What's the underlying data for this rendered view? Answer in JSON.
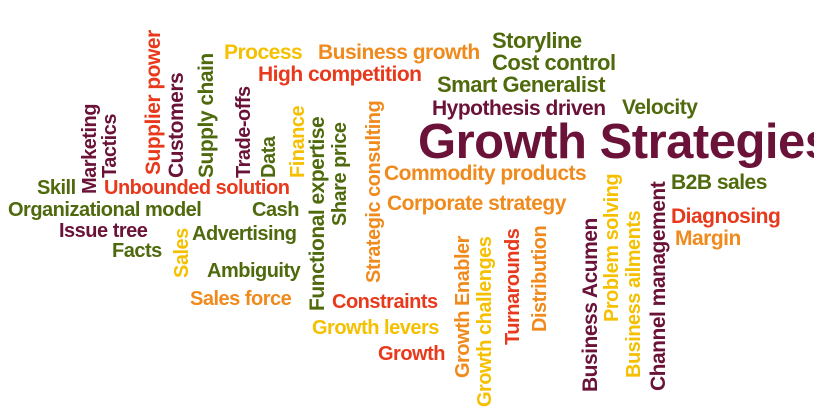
{
  "palette": {
    "maroon": "#6b1238",
    "olive": "#4f6a0c",
    "orange": "#f08a1c",
    "red": "#e8391c",
    "yellow": "#f5c000"
  },
  "words": [
    {
      "text": "Growth Strategies",
      "color": "#6b1238"
    },
    {
      "text": "Storyline",
      "color": "#4f6a0c"
    },
    {
      "text": "Cost control",
      "color": "#4f6a0c"
    },
    {
      "text": "Smart Generalist",
      "color": "#4f6a0c"
    },
    {
      "text": "Process",
      "color": "#f5c000"
    },
    {
      "text": "Business growth",
      "color": "#f08a1c"
    },
    {
      "text": "High competition",
      "color": "#e8391c"
    },
    {
      "text": "Hypothesis driven",
      "color": "#6b1238"
    },
    {
      "text": "Velocity",
      "color": "#4f6a0c"
    },
    {
      "text": "Commodity products",
      "color": "#f08a1c"
    },
    {
      "text": "B2B sales",
      "color": "#4f6a0c"
    },
    {
      "text": "Corporate strategy",
      "color": "#f08a1c"
    },
    {
      "text": "Diagnosing",
      "color": "#e8391c"
    },
    {
      "text": "Margin",
      "color": "#f08a1c"
    },
    {
      "text": "Skill",
      "color": "#4f6a0c"
    },
    {
      "text": "Unbounded solution",
      "color": "#e8391c"
    },
    {
      "text": "Organizational model",
      "color": "#4f6a0c"
    },
    {
      "text": "Cash",
      "color": "#4f6a0c"
    },
    {
      "text": "Issue tree",
      "color": "#6b1238"
    },
    {
      "text": "Advertising",
      "color": "#4f6a0c"
    },
    {
      "text": "Facts",
      "color": "#4f6a0c"
    },
    {
      "text": "Ambiguity",
      "color": "#4f6a0c"
    },
    {
      "text": "Sales force",
      "color": "#f08a1c"
    },
    {
      "text": "Constraints",
      "color": "#e8391c"
    },
    {
      "text": "Growth levers",
      "color": "#f5c000"
    },
    {
      "text": "Growth",
      "color": "#e8391c"
    },
    {
      "text": "Marketing",
      "color": "#6b1238"
    },
    {
      "text": "Tactics",
      "color": "#6b1238"
    },
    {
      "text": "Supplier power",
      "color": "#e8391c"
    },
    {
      "text": "Customers",
      "color": "#6b1238"
    },
    {
      "text": "Supply chain",
      "color": "#4f6a0c"
    },
    {
      "text": "Trade-offs",
      "color": "#6b1238"
    },
    {
      "text": "Data",
      "color": "#4f6a0c"
    },
    {
      "text": "Finance",
      "color": "#f5c000"
    },
    {
      "text": "Functional expertise",
      "color": "#4f6a0c"
    },
    {
      "text": "Share price",
      "color": "#4f6a0c"
    },
    {
      "text": "Sales",
      "color": "#f5c000"
    },
    {
      "text": "Strategic consulting",
      "color": "#f08a1c"
    },
    {
      "text": "Growth Enabler",
      "color": "#f08a1c"
    },
    {
      "text": "Growth challenges",
      "color": "#f5c000"
    },
    {
      "text": "Turnarounds",
      "color": "#e8391c"
    },
    {
      "text": "Distribution",
      "color": "#f08a1c"
    },
    {
      "text": "Business Acumen",
      "color": "#6b1238"
    },
    {
      "text": "Problem solving",
      "color": "#f5c000"
    },
    {
      "text": "Business ailments",
      "color": "#f5c000"
    },
    {
      "text": "Channel management",
      "color": "#6b1238"
    }
  ]
}
